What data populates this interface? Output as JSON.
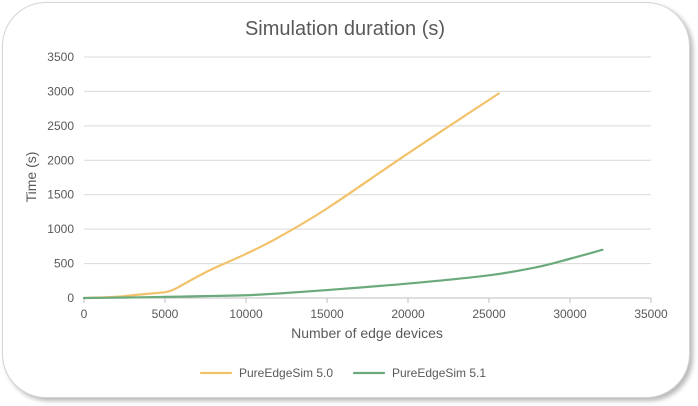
{
  "chart_data": {
    "type": "line",
    "title": "Simulation duration (s)",
    "xlabel": "Number of edge devices",
    "ylabel": "Time (s)",
    "xlim": [
      0,
      35000
    ],
    "ylim": [
      0,
      3500
    ],
    "xticks": [
      0,
      5000,
      10000,
      15000,
      20000,
      25000,
      30000,
      35000
    ],
    "yticks": [
      0,
      500,
      1000,
      1500,
      2000,
      2500,
      3000,
      3500
    ],
    "grid": "horizontal",
    "legend_position": "bottom",
    "series": [
      {
        "name": "PureEdgeSim 5.0",
        "color": "#f2c26b",
        "x": [
          0,
          1000,
          2000,
          3000,
          4000,
          5000,
          5500,
          6000,
          7000,
          8000,
          10000,
          12000,
          15000,
          20000,
          25600
        ],
        "y": [
          0,
          8,
          18,
          40,
          62,
          85,
          120,
          180,
          310,
          430,
          640,
          880,
          1300,
          2100,
          2970
        ]
      },
      {
        "name": "PureEdgeSim 5.1",
        "color": "#6aaa7c",
        "x": [
          0,
          2000,
          4000,
          6000,
          8000,
          10000,
          12000,
          15000,
          20000,
          25000,
          28000,
          30000,
          32000
        ],
        "y": [
          0,
          5,
          12,
          20,
          30,
          40,
          65,
          115,
          210,
          330,
          450,
          570,
          700
        ]
      }
    ]
  }
}
